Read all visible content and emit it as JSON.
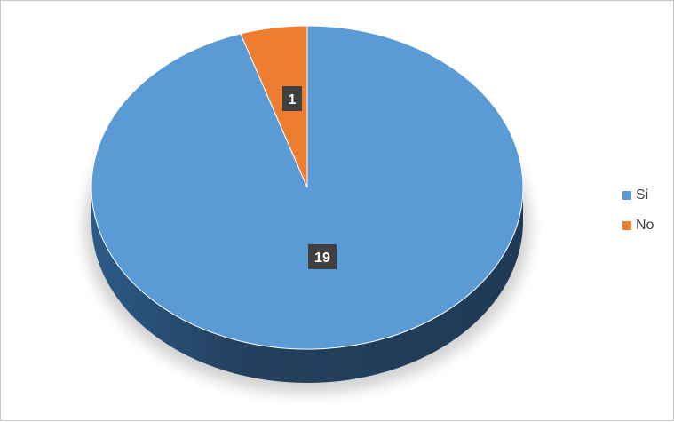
{
  "chart_data": {
    "type": "pie",
    "style": "3d",
    "categories": [
      "Si",
      "No"
    ],
    "values": [
      19,
      1
    ],
    "colors": [
      "#5B9BD5",
      "#ED7D31"
    ],
    "data_labels": [
      "19",
      "1"
    ],
    "legend": {
      "position": "right",
      "entries": [
        "Si",
        "No"
      ]
    }
  }
}
